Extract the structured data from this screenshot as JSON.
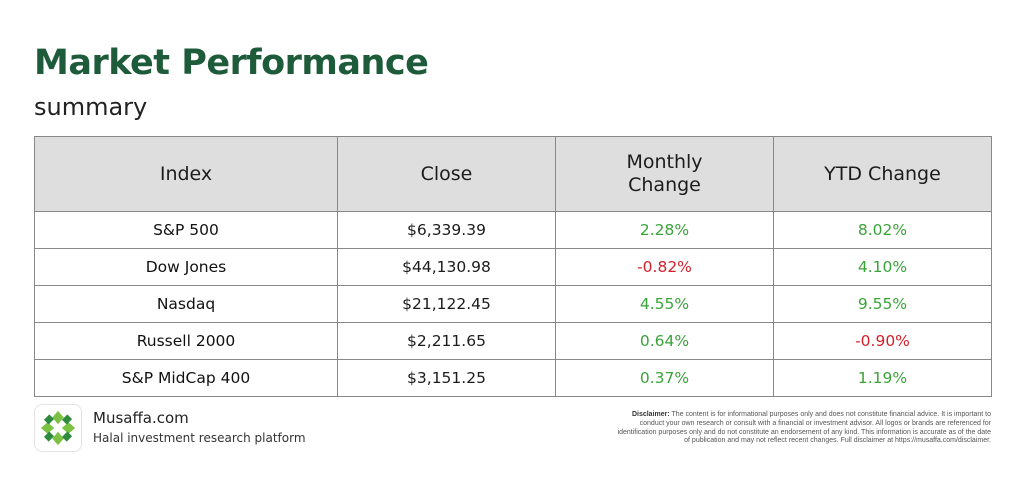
{
  "title": "Market Performance",
  "subtitle": "summary",
  "table": {
    "headers": {
      "index": "Index",
      "close": "Close",
      "monthly_line1": "Monthly",
      "monthly_line2": "Change",
      "ytd": "YTD Change"
    },
    "rows": [
      {
        "index": "S&P 500",
        "close": "$6,339.39",
        "monthly": "2.28%",
        "ytd": "8.02%"
      },
      {
        "index": "Dow Jones",
        "close": "$44,130.98",
        "monthly": "-0.82%",
        "ytd": "4.10%"
      },
      {
        "index": "Nasdaq",
        "close": "$21,122.45",
        "monthly": "4.55%",
        "ytd": "9.55%"
      },
      {
        "index": "Russell 2000",
        "close": "$2,211.65",
        "monthly": "0.64%",
        "ytd": "-0.90%"
      },
      {
        "index": "S&P MidCap 400",
        "close": "$3,151.25",
        "monthly": "0.37%",
        "ytd": "1.19%"
      }
    ]
  },
  "colors": {
    "title": "#1d5b3a",
    "positive": "#3aa33a",
    "negative": "#d4202a",
    "header_bg": "#dedede"
  },
  "footer": {
    "logo_icon": "musaffa-logo-icon",
    "brand_name": "Musaffa.com",
    "tagline": "Halal investment research platform",
    "disclaimer_label": "Disclaimer:",
    "disclaimer_text": "The content is for informational purposes only and does not constitute financial advice. It is important to conduct your own research or consult with a financial or investment advisor. All logos or brands are referenced for identification purposes only and do not constitute an endorsement of any kind. This information is accurate as of the date of publication and may not reflect recent changes. Full disclaimer at https://musaffa.com/disclaimer."
  }
}
